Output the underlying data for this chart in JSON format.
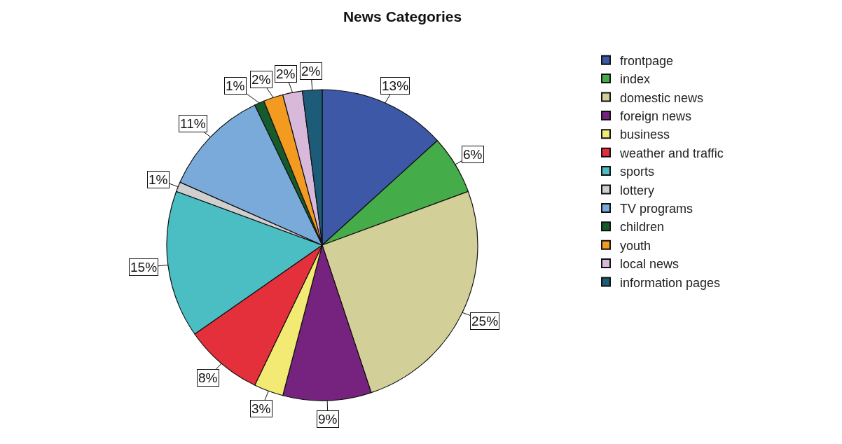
{
  "chart_data": {
    "type": "pie",
    "title": "News Categories",
    "categories": [
      "frontpage",
      "index",
      "domestic news",
      "foreign news",
      "business",
      "weather and traffic",
      "sports",
      "lottery",
      "TV programs",
      "children",
      "youth",
      "local news",
      "information pages"
    ],
    "values": [
      13,
      6,
      25,
      9,
      3,
      8,
      15,
      1,
      11,
      1,
      2,
      2,
      2
    ],
    "value_labels": [
      "13%",
      "6%",
      "25%",
      "9%",
      "3%",
      "8%",
      "15%",
      "1%",
      "11%",
      "1%",
      "2%",
      "2%",
      "2%"
    ],
    "colors": [
      "#3d58a6",
      "#45ac4a",
      "#d3cf98",
      "#75237f",
      "#f2ea72",
      "#e4303a",
      "#4bbec4",
      "#cfcfcf",
      "#7aaad9",
      "#155b2e",
      "#f39a21",
      "#d8b9dc",
      "#1c5c78"
    ],
    "legend": "top right"
  }
}
